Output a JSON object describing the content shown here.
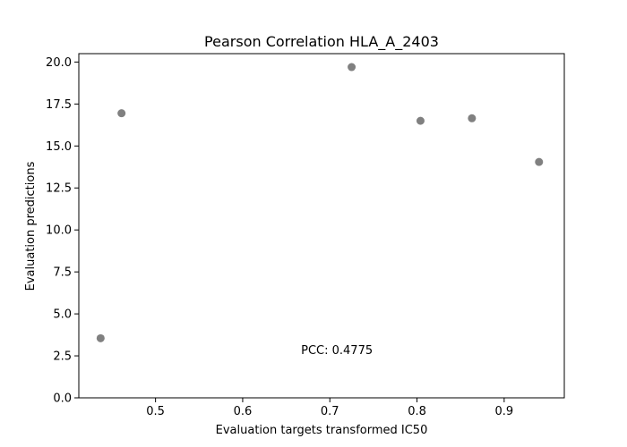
{
  "chart_data": {
    "type": "scatter",
    "title": "Pearson Correlation HLA_A_2403",
    "xlabel": "Evaluation targets transformed IC50",
    "ylabel": "Evaluation predictions",
    "xlim": [
      0.412,
      0.969
    ],
    "ylim": [
      0.0,
      20.5
    ],
    "x_ticks": [
      0.5,
      0.6,
      0.7,
      0.8,
      0.9
    ],
    "x_tick_labels": [
      "0.5",
      "0.6",
      "0.7",
      "0.8",
      "0.9"
    ],
    "y_ticks": [
      0.0,
      2.5,
      5.0,
      7.5,
      10.0,
      12.5,
      15.0,
      17.5,
      20.0
    ],
    "y_tick_labels": [
      "0.0",
      "2.5",
      "5.0",
      "7.5",
      "10.0",
      "12.5",
      "15.0",
      "17.5",
      "20.0"
    ],
    "grid": false,
    "point_color": "#808080",
    "points": [
      {
        "x": 0.437,
        "y": 3.55
      },
      {
        "x": 0.461,
        "y": 16.95
      },
      {
        "x": 0.725,
        "y": 19.7
      },
      {
        "x": 0.804,
        "y": 16.5
      },
      {
        "x": 0.863,
        "y": 16.65
      },
      {
        "x": 0.94,
        "y": 14.05
      }
    ],
    "annotation": {
      "text": "PCC: 0.4775",
      "x": 0.667,
      "y": 2.6
    }
  }
}
